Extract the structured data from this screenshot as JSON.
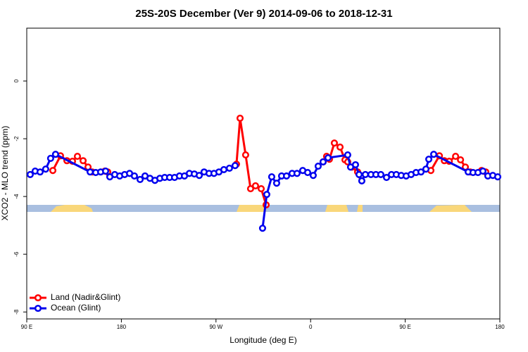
{
  "chart_data": {
    "type": "line",
    "title": "25S-20S December (Ver 9)   2014-09-06 to 2018-12-31",
    "x_label": "Longitude (deg E)",
    "y_label": "XCO2 - MLO trend (ppm)",
    "xlim": [
      90,
      540
    ],
    "xticks": [
      {
        "value": 90,
        "label": "90 E"
      },
      180,
      {
        "value": 270,
        "label": "90 W"
      },
      {
        "value": 360,
        "label": "0"
      },
      {
        "value": 450,
        "label": "90 E"
      },
      {
        "value": 540,
        "label": "180"
      }
    ],
    "ylim": [
      -8.24,
      1.83
    ],
    "yticks": [
      0,
      -2,
      -4,
      -6,
      -8
    ],
    "legend": "bottom-left",
    "series": [
      {
        "name": "Land (Nadir&Glint)",
        "color": "#ff0000",
        "x": [
          114.8,
          122.1,
          128.2,
          133.5,
          138.2,
          143.6,
          148.3,
          152.3,
          null,
          164.3,
          167,
          null,
          289.5,
          292.9,
          298.2,
          302.9,
          307.6,
          313,
          317.7,
          null,
          371.9,
          375.2,
          377.9,
          382.6,
          388,
          392.7,
          395.3,
          399.4,
          404.7,
          408.1,
          null,
          474.4,
          482.5,
          487.2,
          491.9,
          497.9,
          502.6,
          507.2,
          511.9,
          null,
          522.6,
          526.6
        ],
        "values": [
          -3.1,
          -2.59,
          -2.76,
          -2.78,
          -2.61,
          -2.76,
          -2.98,
          -3.15,
          null,
          -3.12,
          -3.15,
          null,
          -2.88,
          -1.29,
          -2.56,
          -3.73,
          -3.63,
          -3.73,
          -4.29,
          null,
          -2.8,
          -2.61,
          -2.71,
          -2.15,
          -2.29,
          -2.73,
          -2.8,
          -2.98,
          -3.15,
          -3.29,
          null,
          -3.1,
          -2.59,
          -2.76,
          -2.78,
          -2.61,
          -2.73,
          -2.98,
          -3.15,
          null,
          -3.1,
          -3.15
        ]
      },
      {
        "name": "Ocean (Glint)",
        "color": "#0000ee",
        "x": [
          93.3,
          98,
          102.7,
          108,
          112.7,
          117.4,
          150.3,
          155.6,
          160.3,
          165,
          169,
          173.7,
          178.4,
          183.1,
          187.8,
          192.4,
          197.8,
          202.5,
          207.2,
          211.9,
          216.6,
          221.2,
          225.9,
          230.6,
          235.3,
          240,
          244.7,
          249.4,
          254.1,
          258.7,
          263.4,
          268.1,
          272.8,
          277.5,
          282.8,
          288.2,
          null,
          314.3,
          318.3,
          323,
          327.7,
          332.4,
          337.1,
          342.4,
          347.1,
          352.5,
          357.2,
          362.5,
          367.2,
          371.9,
          376.6,
          395.3,
          398,
          402.7,
          406.1,
          408.7,
          412.1,
          417.4,
          422.1,
          426.8,
          432.2,
          436.9,
          441.5,
          446.2,
          450.9,
          455.6,
          460.3,
          465,
          469.7,
          472.4,
          477.1,
          509.9,
          514.5,
          519.2,
          523.9,
          528.6,
          533.3,
          538
        ],
        "values": [
          -3.24,
          -3.12,
          -3.15,
          -3.05,
          -2.68,
          -2.54,
          -3.15,
          -3.17,
          -3.15,
          -3.12,
          -3.32,
          -3.24,
          -3.29,
          -3.24,
          -3.2,
          -3.29,
          -3.41,
          -3.29,
          -3.37,
          -3.44,
          -3.37,
          -3.34,
          -3.34,
          -3.34,
          -3.29,
          -3.29,
          -3.2,
          -3.22,
          -3.27,
          -3.15,
          -3.2,
          -3.2,
          -3.15,
          -3.07,
          -3.02,
          -2.93,
          null,
          -5.1,
          -3.93,
          -3.32,
          -3.54,
          -3.29,
          -3.29,
          -3.2,
          -3.2,
          -3.1,
          -3.17,
          -3.27,
          -2.95,
          -2.8,
          -2.66,
          -2.56,
          -2.98,
          -2.9,
          -3.24,
          -3.46,
          -3.24,
          -3.24,
          -3.24,
          -3.24,
          -3.34,
          -3.24,
          -3.24,
          -3.27,
          -3.29,
          -3.24,
          -3.17,
          -3.15,
          -3.05,
          -2.71,
          -2.54,
          -3.15,
          -3.17,
          -3.17,
          -3.12,
          -3.29,
          -3.27,
          -3.32
        ]
      }
    ]
  }
}
